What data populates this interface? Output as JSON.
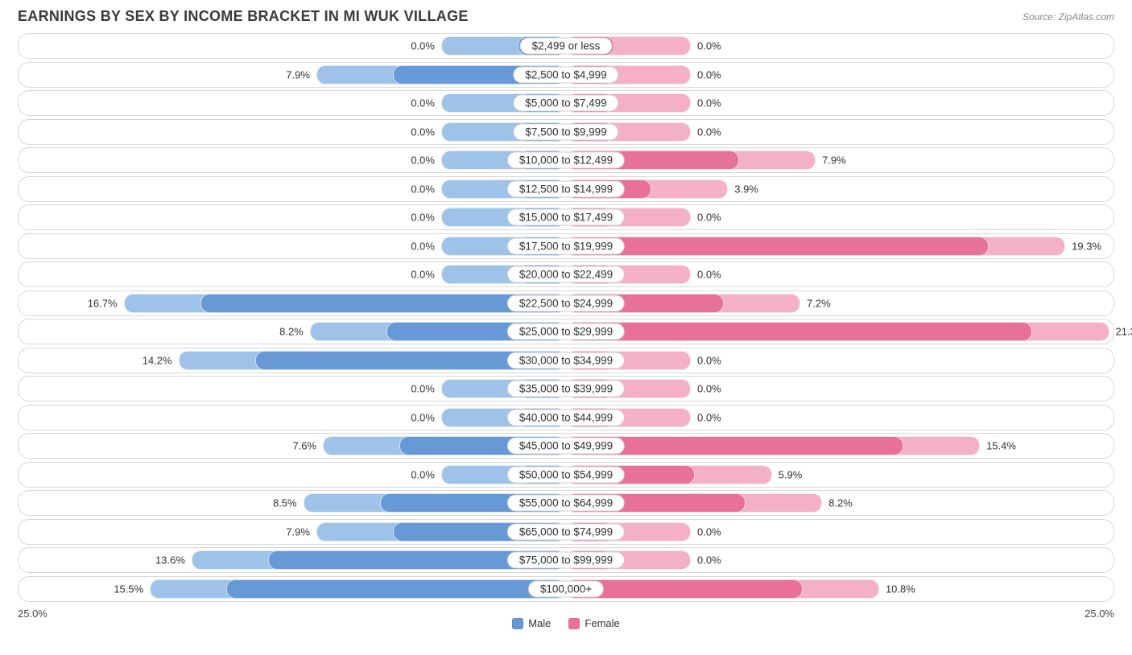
{
  "title": "EARNINGS BY SEX BY INCOME BRACKET IN MI WUK VILLAGE",
  "source": "Source: ZipAtlas.com",
  "axis_max_label": "25.0%",
  "axis_max": 25.0,
  "min_segment_pct": 2.2,
  "base_outer_extra_pct": 2.0,
  "colors": {
    "male_outer": "#9ec2e8",
    "male_inner": "#6699d6",
    "female_outer": "#f4b0c4",
    "female_inner": "#e8719a",
    "row_border": "#d8d8d8",
    "text": "#333333",
    "background": "#ffffff"
  },
  "legend": [
    {
      "label": "Male",
      "color": "#6699d6"
    },
    {
      "label": "Female",
      "color": "#e8719a"
    }
  ],
  "rows": [
    {
      "label": "$2,499 or less",
      "male": 0.0,
      "female": 0.0
    },
    {
      "label": "$2,500 to $4,999",
      "male": 7.9,
      "female": 0.0
    },
    {
      "label": "$5,000 to $7,499",
      "male": 0.0,
      "female": 0.0
    },
    {
      "label": "$7,500 to $9,999",
      "male": 0.0,
      "female": 0.0
    },
    {
      "label": "$10,000 to $12,499",
      "male": 0.0,
      "female": 7.9
    },
    {
      "label": "$12,500 to $14,999",
      "male": 0.0,
      "female": 3.9
    },
    {
      "label": "$15,000 to $17,499",
      "male": 0.0,
      "female": 0.0
    },
    {
      "label": "$17,500 to $19,999",
      "male": 0.0,
      "female": 19.3
    },
    {
      "label": "$20,000 to $22,499",
      "male": 0.0,
      "female": 0.0
    },
    {
      "label": "$22,500 to $24,999",
      "male": 16.7,
      "female": 7.2
    },
    {
      "label": "$25,000 to $29,999",
      "male": 8.2,
      "female": 21.3
    },
    {
      "label": "$30,000 to $34,999",
      "male": 14.2,
      "female": 0.0
    },
    {
      "label": "$35,000 to $39,999",
      "male": 0.0,
      "female": 0.0
    },
    {
      "label": "$40,000 to $44,999",
      "male": 0.0,
      "female": 0.0
    },
    {
      "label": "$45,000 to $49,999",
      "male": 7.6,
      "female": 15.4
    },
    {
      "label": "$50,000 to $54,999",
      "male": 0.0,
      "female": 5.9
    },
    {
      "label": "$55,000 to $64,999",
      "male": 8.5,
      "female": 8.2
    },
    {
      "label": "$65,000 to $74,999",
      "male": 7.9,
      "female": 0.0
    },
    {
      "label": "$75,000 to $99,999",
      "male": 13.6,
      "female": 0.0
    },
    {
      "label": "$100,000+",
      "male": 15.5,
      "female": 10.8
    }
  ]
}
